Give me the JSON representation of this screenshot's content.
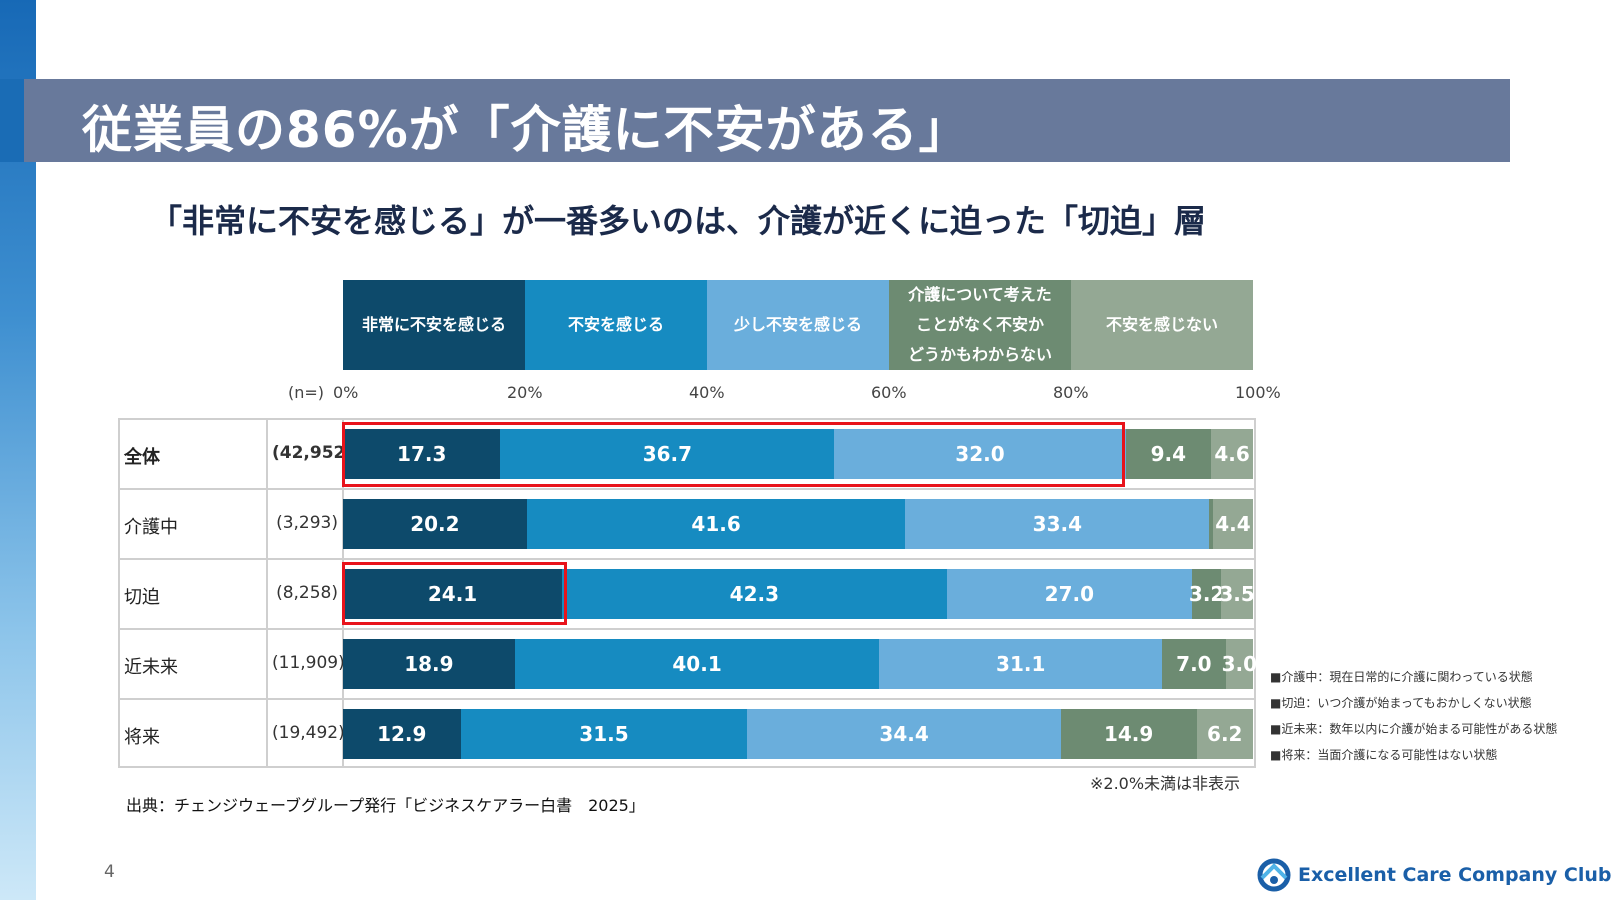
{
  "title": "従業員の86%が「介護に不安がある」",
  "subtitle": "「非常に不安を感じる」が一番多いのは、介護が近くに迫った「切迫」層",
  "chart_data": {
    "type": "bar",
    "orientation": "horizontal",
    "stacked": true,
    "n_label": "(n=)",
    "xlim": [
      0,
      100
    ],
    "x_ticks": [
      "0%",
      "20%",
      "40%",
      "60%",
      "80%",
      "100%"
    ],
    "categories": [
      "全体",
      "介護中",
      "切迫",
      "近未来",
      "将来"
    ],
    "n_values": [
      "(42,952)",
      "(3,293)",
      "(8,258)",
      "(11,909)",
      "(19,492)"
    ],
    "series": [
      {
        "name": "非常に不安を感じる",
        "color": "#0d4a6b",
        "values": [
          17.3,
          20.2,
          24.1,
          18.9,
          12.9
        ]
      },
      {
        "name": "不安を感じる",
        "color": "#168bc1",
        "values": [
          36.7,
          41.6,
          42.3,
          40.1,
          31.5
        ]
      },
      {
        "name": "少し不安を感じる",
        "color": "#6aaedc",
        "values": [
          32.0,
          33.4,
          27.0,
          31.1,
          34.4
        ]
      },
      {
        "name": "介護について考えたことがなく不安かどうかもわからない",
        "color": "#6d8b72",
        "values": [
          9.4,
          0.4,
          3.2,
          7.0,
          14.9
        ]
      },
      {
        "name": "不安を感じない",
        "color": "#94a894",
        "values": [
          4.6,
          4.4,
          3.5,
          3.0,
          6.2
        ]
      }
    ],
    "legend_labels": [
      "非常に不安を感じる",
      "不安を感じる",
      "少し不安を感じる",
      "介護について考えた\nことがなく不安か\nどうかもわからない",
      "不安を感じない"
    ],
    "label_threshold": 2.0,
    "note": "※2.0%未満は非表示"
  },
  "source": "出典：チェンジウェーブグループ発行「ビジネスケアラー白書　2025」",
  "definitions": [
    "■介護中：現在日常的に介護に関わっている状態",
    "■切迫：いつ介護が始まってもおかしくない状態",
    "■近未来：数年以内に介護が始まる可能性がある状態",
    "■将来：当面介護になる可能性はない状態"
  ],
  "page_number": "4",
  "logo_text": "Excellent Care Company Club",
  "colors": {
    "title_band": "#68799b",
    "highlight": "#e8131b",
    "logo": "#1a5fa8"
  }
}
